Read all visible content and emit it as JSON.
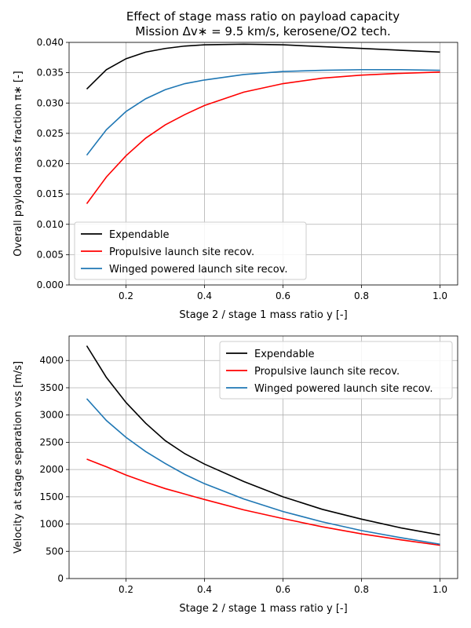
{
  "figure": {
    "title_line1": "Effect of stage mass ratio on payload capacity",
    "title_line2": "Mission Δv∗ = 9.5 km/s, kerosene/O2 tech."
  },
  "chart_data": [
    {
      "type": "line",
      "xlabel": "Stage 2 / stage 1 mass ratio y [-]",
      "ylabel": "Overall payload mass fraction π∗ [-]",
      "xlim": [
        0.055,
        1.045
      ],
      "ylim": [
        0.0,
        0.04
      ],
      "xticks": [
        0.2,
        0.4,
        0.6,
        0.8,
        1.0
      ],
      "xtick_labels": [
        "0.2",
        "0.4",
        "0.6",
        "0.8",
        "1.0"
      ],
      "yticks": [
        0.0,
        0.005,
        0.01,
        0.015,
        0.02,
        0.025,
        0.03,
        0.035,
        0.04
      ],
      "ytick_labels": [
        "0.000",
        "0.005",
        "0.010",
        "0.015",
        "0.020",
        "0.025",
        "0.030",
        "0.035",
        "0.040"
      ],
      "grid": true,
      "legend": "lower-left",
      "x": [
        0.1,
        0.15,
        0.2,
        0.25,
        0.3,
        0.35,
        0.4,
        0.5,
        0.6,
        0.7,
        0.8,
        0.9,
        1.0
      ],
      "series": [
        {
          "name": "Expendable",
          "color": "#000000",
          "values": [
            0.0323,
            0.0355,
            0.0373,
            0.0384,
            0.039,
            0.0394,
            0.0396,
            0.0397,
            0.0396,
            0.0393,
            0.039,
            0.0387,
            0.0384
          ]
        },
        {
          "name": "Propulsive launch site recov.",
          "color": "#ff0000",
          "values": [
            0.0134,
            0.0178,
            0.0213,
            0.0242,
            0.0264,
            0.0281,
            0.0296,
            0.0318,
            0.0332,
            0.0341,
            0.0346,
            0.0349,
            0.0351
          ]
        },
        {
          "name": "Winged powered launch site recov.",
          "color": "#1f77b4",
          "values": [
            0.0214,
            0.0256,
            0.0286,
            0.0307,
            0.0322,
            0.0332,
            0.0338,
            0.0347,
            0.0352,
            0.0354,
            0.0355,
            0.0355,
            0.0354
          ]
        }
      ]
    },
    {
      "type": "line",
      "xlabel": "Stage 2 / stage 1 mass ratio y [-]",
      "ylabel": "Velocity at stage separation vss [m/s]",
      "xlim": [
        0.055,
        1.045
      ],
      "ylim": [
        0,
        4450
      ],
      "xticks": [
        0.2,
        0.4,
        0.6,
        0.8,
        1.0
      ],
      "xtick_labels": [
        "0.2",
        "0.4",
        "0.6",
        "0.8",
        "1.0"
      ],
      "yticks": [
        0,
        500,
        1000,
        1500,
        2000,
        2500,
        3000,
        3500,
        4000
      ],
      "ytick_labels": [
        "0",
        "500",
        "1000",
        "1500",
        "2000",
        "2500",
        "3000",
        "3500",
        "4000"
      ],
      "grid": true,
      "legend": "upper-right",
      "x": [
        0.1,
        0.15,
        0.2,
        0.25,
        0.3,
        0.35,
        0.4,
        0.5,
        0.6,
        0.7,
        0.8,
        0.9,
        1.0
      ],
      "series": [
        {
          "name": "Expendable",
          "color": "#000000",
          "values": [
            4270,
            3690,
            3230,
            2850,
            2530,
            2290,
            2100,
            1780,
            1500,
            1270,
            1090,
            930,
            800
          ]
        },
        {
          "name": "Propulsive launch site recov.",
          "color": "#ff0000",
          "values": [
            2190,
            2050,
            1900,
            1770,
            1650,
            1550,
            1450,
            1260,
            1100,
            950,
            820,
            710,
            610
          ]
        },
        {
          "name": "Winged powered launch site recov.",
          "color": "#1f77b4",
          "values": [
            3300,
            2900,
            2590,
            2330,
            2110,
            1910,
            1740,
            1460,
            1230,
            1040,
            880,
            750,
            630
          ]
        }
      ]
    }
  ]
}
